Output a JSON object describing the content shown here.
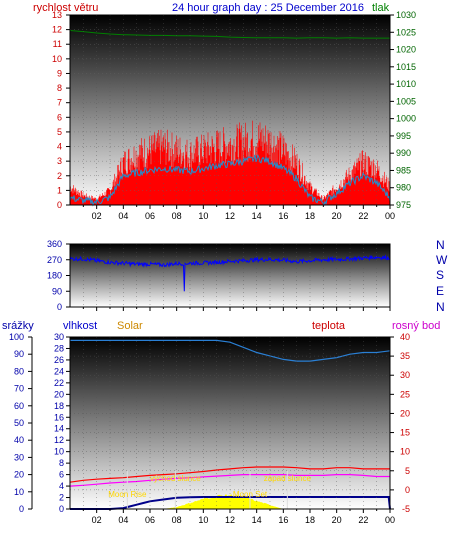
{
  "header": {
    "left_label": "rychlost větru",
    "title": "24 hour graph day : 25 December 2016",
    "right_label": "tlak"
  },
  "mid_panel": {
    "right_letters": [
      "N",
      "W",
      "S",
      "E",
      "N"
    ]
  },
  "bottom_header": {
    "rain": "srážky",
    "humidity": "vlhkost",
    "solar": "Solar",
    "temp": "teplota",
    "dew": "rosný bod"
  },
  "colors": {
    "wind_gust": "#ff0000",
    "wind_avg": "#1e90d0",
    "pressure": "#008000",
    "direction": "#0000ff",
    "humidity": "#2a7fd4",
    "temperature": "#ff0000",
    "dewpoint": "#ff00ff",
    "solar": "#ffff00",
    "rain": "#00008b",
    "axis_left": "#cc0000",
    "axis_right_top": "#006400",
    "axis_blue": "#0000aa",
    "axis_magenta": "#cc00cc",
    "annotation": "#ffd700"
  },
  "chart_data": [
    {
      "type": "line",
      "title": "24 hour graph day : 25 December 2016",
      "x_ticks": [
        "02",
        "04",
        "06",
        "08",
        "10",
        "12",
        "14",
        "16",
        "18",
        "20",
        "22",
        "00"
      ],
      "y_left": {
        "label": "rychlost větru",
        "range": [
          0,
          13
        ],
        "ticks": [
          0,
          1,
          2,
          3,
          4,
          5,
          6,
          7,
          8,
          9,
          10,
          11,
          12,
          13
        ]
      },
      "y_right": {
        "label": "tlak",
        "range": [
          975,
          1030
        ],
        "ticks": [
          975,
          980,
          985,
          990,
          995,
          1000,
          1005,
          1010,
          1015,
          1020,
          1025,
          1030
        ]
      },
      "series": [
        {
          "name": "rychlost větru",
          "x": [
            0,
            1,
            2,
            3,
            4,
            5,
            6,
            7,
            8,
            9,
            10,
            11,
            12,
            13,
            14,
            15,
            16,
            17,
            18,
            19,
            20,
            21,
            22,
            23,
            24
          ],
          "values": [
            1.5,
            0.8,
            0.5,
            1.2,
            3.5,
            4.2,
            4.5,
            4.8,
            4.5,
            4.2,
            4.5,
            4.8,
            5.0,
            5.2,
            5.5,
            5.2,
            4.5,
            3.5,
            1.5,
            0.5,
            1.5,
            2.5,
            3.5,
            3.0,
            1.5
          ]
        },
        {
          "name": "wind average",
          "x": [
            0,
            1,
            2,
            3,
            4,
            5,
            6,
            7,
            8,
            9,
            10,
            11,
            12,
            13,
            14,
            15,
            16,
            17,
            18,
            19,
            20,
            21,
            22,
            23,
            24
          ],
          "values": [
            0.5,
            0.3,
            0.2,
            0.5,
            2.0,
            2.2,
            2.4,
            2.5,
            2.4,
            2.3,
            2.5,
            2.7,
            2.8,
            3.0,
            3.2,
            3.0,
            2.5,
            1.8,
            0.5,
            0.2,
            0.8,
            1.5,
            2.0,
            1.5,
            0.5
          ]
        },
        {
          "name": "tlak",
          "axis": "right",
          "x": [
            0,
            1,
            2,
            3,
            4,
            5,
            6,
            7,
            8,
            9,
            10,
            11,
            12,
            13,
            14,
            15,
            16,
            17,
            18,
            19,
            20,
            21,
            22,
            23,
            24
          ],
          "values": [
            1025.5,
            1025.2,
            1024.8,
            1024.5,
            1024.3,
            1024.2,
            1024.1,
            1024.1,
            1024.0,
            1024.0,
            1023.9,
            1023.8,
            1023.6,
            1023.5,
            1023.4,
            1023.4,
            1023.4,
            1023.3,
            1023.4,
            1023.4,
            1023.3,
            1023.4,
            1023.3,
            1023.3,
            1023.3
          ]
        }
      ]
    },
    {
      "type": "line",
      "x_ticks": [
        "02",
        "04",
        "06",
        "08",
        "10",
        "12",
        "14",
        "16",
        "18",
        "20",
        "22",
        "00"
      ],
      "y_left": {
        "range": [
          0,
          360
        ],
        "ticks": [
          0,
          90,
          180,
          270,
          360
        ]
      },
      "y_right": {
        "ticks": [
          "N",
          "W",
          "S",
          "E",
          "N"
        ]
      },
      "series": [
        {
          "name": "wind direction",
          "x": [
            0,
            1,
            2,
            3,
            4,
            5,
            6,
            7,
            8,
            9,
            10,
            11,
            12,
            13,
            14,
            15,
            16,
            17,
            18,
            19,
            20,
            21,
            22,
            23,
            24
          ],
          "values": [
            275,
            275,
            265,
            255,
            250,
            245,
            245,
            240,
            248,
            250,
            252,
            255,
            262,
            265,
            270,
            272,
            268,
            260,
            265,
            270,
            272,
            275,
            280,
            285,
            280
          ]
        }
      ]
    },
    {
      "type": "line",
      "x_ticks": [
        "02",
        "04",
        "06",
        "08",
        "10",
        "12",
        "14",
        "16",
        "18",
        "20",
        "22",
        "00"
      ],
      "y_left_rain": {
        "label": "srážky",
        "range": [
          0,
          100
        ],
        "ticks": [
          0,
          10,
          20,
          30,
          40,
          50,
          60,
          70,
          80,
          90,
          100
        ]
      },
      "y_left_humidity": {
        "label": "vlhkost",
        "range": [
          0,
          30
        ],
        "ticks": [
          0,
          2,
          4,
          6,
          8,
          10,
          12,
          14,
          16,
          18,
          20,
          22,
          24,
          26,
          28,
          30
        ]
      },
      "y_right": {
        "label": "teplota",
        "range": [
          -5,
          40
        ],
        "ticks": [
          -5,
          0,
          5,
          10,
          15,
          20,
          25,
          30,
          35,
          40
        ]
      },
      "annotations": [
        {
          "text": "Moon Rise",
          "x": 4.3
        },
        {
          "text": "východ slunce",
          "x": 7.9
        },
        {
          "text": "Moon Set",
          "x": 13.5
        },
        {
          "text": "západ slunce",
          "x": 16.3
        }
      ],
      "series": [
        {
          "name": "vlhkost",
          "x": [
            0,
            2,
            4,
            6,
            8,
            10,
            11,
            12,
            13,
            14,
            15,
            16,
            17,
            18,
            19,
            20,
            21,
            22,
            23,
            24
          ],
          "values": [
            98,
            98,
            98,
            98,
            98,
            98,
            98,
            97,
            94,
            91,
            89,
            87,
            86,
            86,
            87,
            88,
            90,
            91,
            91,
            92
          ]
        },
        {
          "name": "teplota",
          "x": [
            0,
            1,
            2,
            3,
            4,
            5,
            6,
            7,
            8,
            9,
            10,
            11,
            12,
            13,
            14,
            15,
            16,
            17,
            18,
            19,
            20,
            21,
            22,
            23,
            24
          ],
          "values": [
            2.0,
            2.5,
            2.8,
            3.0,
            3.2,
            3.5,
            3.8,
            4.0,
            4.2,
            4.5,
            4.8,
            5.2,
            5.5,
            5.8,
            6.0,
            6.0,
            6.0,
            5.8,
            5.5,
            5.5,
            5.8,
            5.8,
            5.5,
            5.5,
            5.5
          ]
        },
        {
          "name": "rosný bod",
          "x": [
            0,
            1,
            2,
            3,
            4,
            5,
            6,
            7,
            8,
            9,
            10,
            11,
            12,
            13,
            14,
            15,
            16,
            17,
            18,
            19,
            20,
            21,
            22,
            23,
            24
          ],
          "values": [
            1.0,
            1.2,
            1.5,
            1.8,
            2.0,
            2.2,
            2.5,
            2.8,
            3.0,
            3.2,
            3.4,
            3.6,
            3.8,
            4.0,
            4.0,
            4.0,
            4.0,
            3.8,
            3.8,
            3.8,
            4.0,
            4.0,
            3.8,
            3.5,
            3.5
          ]
        },
        {
          "name": "Solar",
          "x": [
            0,
            7,
            8,
            9,
            10,
            11,
            12,
            13,
            14,
            15,
            16,
            24
          ],
          "values": [
            0,
            0,
            2,
            6,
            10,
            13,
            14,
            12,
            8,
            4,
            0,
            0
          ]
        },
        {
          "name": "srážky",
          "x": [
            0,
            3,
            4,
            4.5,
            5,
            5.5,
            6,
            7,
            8,
            9,
            10,
            12,
            14,
            16,
            18,
            20,
            22,
            23.9,
            24
          ],
          "values": [
            0,
            0,
            0.5,
            1.5,
            2.5,
            3.5,
            4.5,
            5.5,
            6.5,
            6.8,
            7.0,
            7.0,
            7.0,
            7.0,
            7.0,
            7.0,
            7.0,
            7.0,
            0
          ]
        }
      ]
    }
  ]
}
